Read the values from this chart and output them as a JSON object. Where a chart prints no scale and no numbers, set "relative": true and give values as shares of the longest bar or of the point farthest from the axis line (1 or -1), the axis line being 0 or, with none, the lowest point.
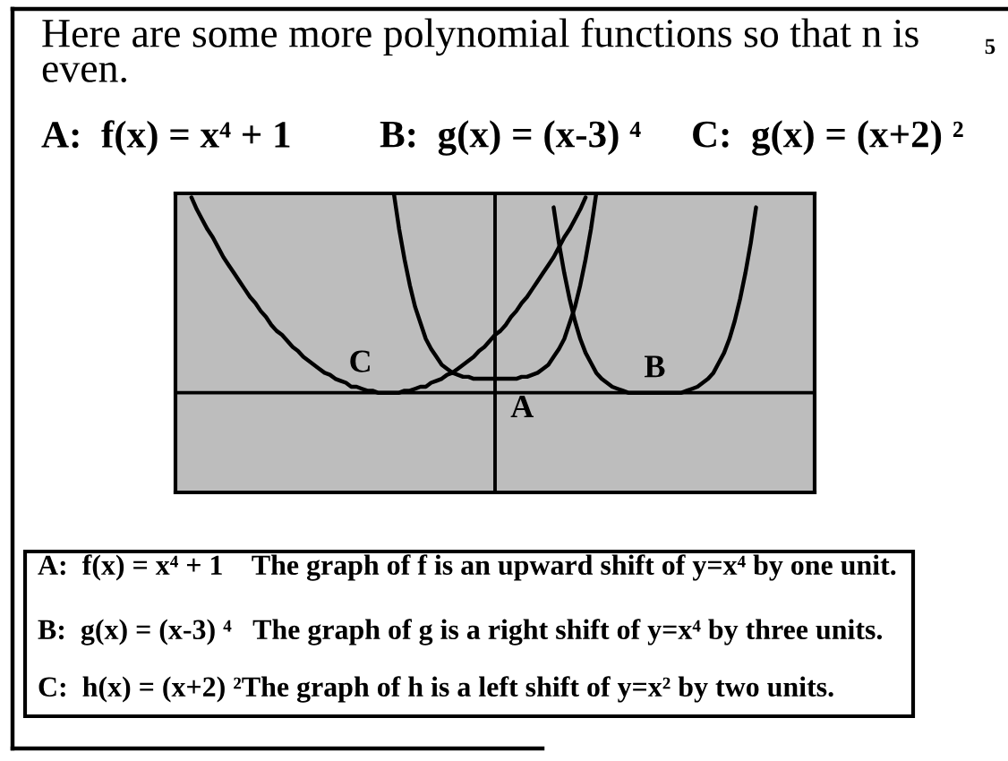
{
  "chart_data": {
    "type": "line",
    "title": "Here are some more polynomial functions so that n is even.",
    "relative": true,
    "categories": [
      null,
      null,
      null,
      null,
      null,
      null,
      null,
      null,
      null,
      null,
      null,
      null,
      null,
      null,
      null,
      null,
      null,
      null,
      null,
      null,
      null,
      null,
      null,
      null,
      null,
      null,
      null,
      null,
      null,
      null,
      null,
      null,
      null,
      null,
      null,
      null,
      null,
      null,
      null,
      null,
      null,
      null,
      null,
      null,
      null,
      null,
      null,
      null,
      null,
      null,
      null,
      null,
      null,
      null,
      null,
      null,
      null,
      null,
      null,
      null,
      null,
      null,
      null,
      null,
      null,
      null,
      null,
      null,
      null,
      null,
      null,
      null,
      null,
      null,
      null,
      null,
      null,
      null,
      null,
      null,
      null,
      null,
      null,
      null,
      null,
      null,
      null,
      null,
      null,
      null,
      null,
      null,
      null,
      null,
      null,
      null,
      null,
      null,
      null,
      null,
      null,
      null,
      null,
      null,
      null,
      null,
      null,
      null,
      null,
      null,
      null,
      null,
      null,
      null,
      null,
      null,
      null,
      null,
      null,
      null,
      null
    ],
    "series": [
      {
        "name": "A",
        "color": "#000000",
        "values": [
          null,
          null,
          null,
          null,
          null,
          null,
          null,
          null,
          null,
          null,
          null,
          null,
          null,
          null,
          null,
          null,
          null,
          null,
          null,
          null,
          null,
          null,
          null,
          null,
          null,
          null,
          null,
          null,
          null,
          null,
          null,
          null,
          null,
          null,
          null,
          null,
          null,
          null,
          null,
          null,
          null,
          1,
          0.82,
          0.67,
          0.54,
          0.43,
          0.35,
          0.27,
          0.22,
          0.18,
          0.14,
          0.12,
          0.1,
          0.09,
          0.08,
          0.08,
          0.07,
          0.07,
          0.07,
          0.07,
          0.07,
          0.07,
          0.07,
          0.07,
          0.07,
          0.08,
          0.08,
          0.09,
          0.1,
          0.12,
          0.14,
          0.18,
          0.22,
          0.27,
          0.35,
          0.43,
          0.54,
          0.67,
          0.82,
          1,
          null,
          null,
          null,
          null,
          null,
          null,
          null,
          null,
          null,
          null,
          null,
          null,
          null,
          null,
          null,
          null,
          null,
          null,
          null,
          null,
          null,
          null,
          null,
          null,
          null,
          null,
          null,
          null,
          null,
          null,
          null,
          null,
          null,
          null,
          null,
          null,
          null,
          null,
          null,
          null,
          null
        ]
      },
      {
        "name": "B",
        "color": "#000000",
        "values": [
          null,
          null,
          null,
          null,
          null,
          null,
          null,
          null,
          null,
          null,
          null,
          null,
          null,
          null,
          null,
          null,
          null,
          null,
          null,
          null,
          null,
          null,
          null,
          null,
          null,
          null,
          null,
          null,
          null,
          null,
          null,
          null,
          null,
          null,
          null,
          null,
          null,
          null,
          null,
          null,
          null,
          null,
          null,
          null,
          null,
          null,
          null,
          null,
          null,
          null,
          null,
          null,
          null,
          null,
          null,
          null,
          null,
          null,
          null,
          null,
          null,
          null,
          null,
          null,
          null,
          null,
          null,
          null,
          null,
          null,
          null,
          0.93,
          0.75,
          0.6,
          0.47,
          0.36,
          0.27,
          0.2,
          0.15,
          0.1,
          0.07,
          0.05,
          0.03,
          0.02,
          0.01,
          0,
          0,
          0,
          0,
          0,
          0,
          0,
          0,
          0,
          0,
          0,
          0.01,
          0.02,
          0.03,
          0.05,
          0.07,
          0.1,
          0.15,
          0.2,
          0.27,
          0.36,
          0.47,
          0.6,
          0.75,
          0.93,
          null,
          null,
          null,
          null,
          null,
          null,
          null,
          null,
          null,
          null,
          null
        ]
      },
      {
        "name": "C",
        "color": "#000000",
        "values": [
          null,
          null,
          null,
          0.98,
          0.92,
          0.87,
          0.82,
          0.78,
          0.73,
          0.68,
          0.64,
          0.6,
          0.56,
          0.52,
          0.48,
          0.45,
          0.41,
          0.38,
          0.34,
          0.31,
          0.29,
          0.26,
          0.23,
          0.21,
          0.18,
          0.16,
          0.14,
          0.12,
          0.1,
          0.09,
          0.07,
          0.06,
          0.05,
          0.03,
          0.03,
          0.02,
          0.01,
          0.01,
          0,
          0,
          0,
          0,
          0,
          0.01,
          0.01,
          0.02,
          0.03,
          0.03,
          0.05,
          0.06,
          0.07,
          0.09,
          0.1,
          0.12,
          0.14,
          0.16,
          0.18,
          0.21,
          0.23,
          0.26,
          0.29,
          0.31,
          0.34,
          0.38,
          0.41,
          0.45,
          0.48,
          0.52,
          0.56,
          0.6,
          0.64,
          0.68,
          0.73,
          0.78,
          0.82,
          0.87,
          0.92,
          0.98,
          null,
          null,
          null,
          null,
          null,
          null,
          null,
          null,
          null,
          null,
          null,
          null,
          null,
          null,
          null,
          null,
          null,
          null,
          null,
          null,
          null,
          null,
          null,
          null,
          null,
          null,
          null,
          null,
          null,
          null,
          null,
          null,
          null,
          null,
          null,
          null,
          null,
          null,
          null,
          null,
          null,
          null,
          null
        ]
      }
    ],
    "annotations": [
      "5",
      "A:  f(x) = x⁴ + 1",
      "B:  g(x) = (x-3) ⁴",
      "C:  g(x) = (x+2) ²",
      "A:  f(x) = x⁴ + 1    The graph of f is an upward shift of y=x⁴ by one unit.",
      "B:  g(x) = (x-3) ⁴   The graph of g is a right shift of y=x⁴ by three units.",
      "C:  h(x) = (x+2) ²The graph of h is a left shift of y=x² by two units."
    ]
  }
}
